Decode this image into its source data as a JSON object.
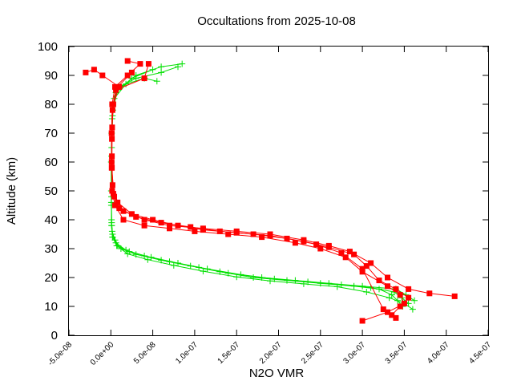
{
  "chart_data": {
    "type": "scatter",
    "title": "Occultations from 2025-10-08",
    "xlabel": "N2O VMR",
    "ylabel": "Altitude (km)",
    "xlim": [
      -5e-08,
      4.5e-07
    ],
    "ylim": [
      0,
      100
    ],
    "x_ticks": [
      -5e-08,
      0.0,
      5e-08,
      1e-07,
      1.5e-07,
      2e-07,
      2.5e-07,
      3e-07,
      3.5e-07,
      4e-07,
      4.5e-07
    ],
    "x_tick_labels": [
      "-5.0e-08",
      "0.0e+00",
      "5.0e-08",
      "1.0e-07",
      "1.5e-07",
      "2.0e-07",
      "2.5e-07",
      "3.0e-07",
      "3.5e-07",
      "4.0e-07",
      "4.5e-07"
    ],
    "y_ticks": [
      0,
      10,
      20,
      30,
      40,
      50,
      60,
      70,
      80,
      90,
      100
    ],
    "y_tick_labels": [
      "0",
      "10",
      "20",
      "30",
      "40",
      "50",
      "60",
      "70",
      "80",
      "90",
      "100"
    ],
    "grid": false,
    "series": [
      {
        "name": "green-profiles",
        "color": "#00e000",
        "marker": "plus",
        "profiles": [
          {
            "x": [
              3.48e-07,
              3.42e-07,
              3.35e-07,
              3.2e-07,
              2.9e-07,
              2.5e-07,
              2.1e-07,
              1.7e-07,
              1.3e-07,
              9.5e-08,
              6e-08,
              3e-08,
              1.2e-08,
              5e-09,
              1.5e-09,
              8e-10,
              5e-10,
              5e-10,
              1e-09,
              2e-09,
              1e-08,
              3e-08,
              6e-08,
              8e-08
            ],
            "y": [
              10,
              12,
              14,
              16,
              17,
              18,
              19,
              20,
              22,
              24,
              26,
              28,
              30,
              33,
              36,
              40,
              50,
              60,
              70,
              80,
              86,
              89,
              91,
              93
            ]
          },
          {
            "x": [
              3.55e-07,
              3.47e-07,
              3.38e-07,
              3.1e-07,
              2.75e-07,
              2.35e-07,
              1.95e-07,
              1.55e-07,
              1.15e-07,
              8e-08,
              4.8e-08,
              2.2e-08,
              8e-09,
              2e-09,
              1e-09,
              6e-10,
              6e-10,
              1.5e-09,
              4e-09,
              1.8e-08,
              4e-08,
              5.5e-08
            ],
            "y": [
              11,
              13,
              15,
              16.5,
              17.5,
              18.5,
              19.5,
              21,
              23,
              25,
              27,
              29,
              31,
              34,
              38,
              45,
              60,
              75,
              82,
              87,
              89,
              88
            ]
          },
          {
            "x": [
              3.62e-07,
              3.52e-07,
              3.4e-07,
              3e-07,
              2.6e-07,
              2.2e-07,
              1.8e-07,
              1.4e-07,
              1.05e-07,
              7e-08,
              4e-08,
              1.8e-08,
              6e-09,
              2e-09,
              1e-09,
              7e-10,
              1e-09,
              2.5e-09,
              8e-09,
              3e-08,
              6e-08,
              8.5e-08
            ],
            "y": [
              12,
              14,
              16,
              17,
              18,
              19,
              20,
              21.5,
              23.5,
              25.5,
              27.5,
              29.5,
              32,
              35,
              39,
              48,
              65,
              78,
              85,
              90,
              93,
              94
            ]
          },
          {
            "x": [
              3.6e-07,
              3.5e-07,
              3.32e-07,
              3.05e-07,
              2.7e-07,
              2.3e-07,
              1.9e-07,
              1.5e-07,
              1.1e-07,
              7.5e-08,
              4.4e-08,
              2e-08,
              7e-09,
              2e-09,
              1e-09,
              6e-10,
              8e-10,
              2e-09,
              6e-09,
              2.5e-08,
              5e-08
            ],
            "y": [
              9,
              11,
              13,
              15,
              16.8,
              17.8,
              18.8,
              20.2,
              22.2,
              24.2,
              26.2,
              28.2,
              31,
              34,
              38,
              46,
              62,
              76,
              84,
              89,
              92
            ]
          }
        ]
      },
      {
        "name": "red-profiles",
        "color": "#ff0000",
        "marker": "square",
        "profiles": [
          {
            "x": [
              3e-07,
              3.3e-07,
              3.5e-07,
              3.45e-07,
              3.3e-07,
              3e-07,
              2.8e-07,
              2.5e-07,
              2.2e-07,
              1.8e-07,
              1.4e-07,
              1e-07,
              7e-08,
              4e-08,
              1.5e-08,
              5e-09,
              1.5e-09,
              1e-09,
              1e-09,
              1.5e-09,
              5e-09,
              2e-08,
              3.5e-08,
              2e-08
            ],
            "y": [
              5,
              8,
              11,
              14,
              17,
              22,
              27,
              30,
              32,
              34,
              35,
              36,
              37,
              38,
              40,
              45,
              50,
              60,
              70,
              80,
              86,
              90,
              94,
              95
            ]
          },
          {
            "x": [
              3.35e-07,
              3.45e-07,
              3.55e-07,
              3.4e-07,
              3.2e-07,
              3.05e-07,
              2.9e-07,
              2.6e-07,
              2.3e-07,
              1.9e-07,
              1.5e-07,
              1.1e-07,
              8e-08,
              5e-08,
              2.5e-08,
              8e-09,
              2e-09,
              1.2e-09,
              1.5e-09,
              2.5e-09,
              8e-09,
              2.5e-08
            ],
            "y": [
              7,
              10,
              13,
              16,
              19,
              24,
              28,
              30.5,
              32.5,
              34.5,
              35.5,
              36.5,
              38,
              40,
              42,
              46,
              52,
              62,
              72,
              80,
              86,
              91
            ]
          },
          {
            "x": [
              4.1e-07,
              3.8e-07,
              3.55e-07,
              3.3e-07,
              3.1e-07,
              2.85e-07,
              2.6e-07,
              2.3e-07,
              1.9e-07,
              1.5e-07,
              1.1e-07,
              7e-08,
              4e-08,
              1.5e-08,
              4e-09,
              1e-09,
              1e-09,
              3e-09,
              1e-08,
              -1e-08,
              -2e-08,
              -3e-08
            ],
            "y": [
              13.5,
              14.5,
              16,
              20,
              25,
              29,
              31,
              33,
              35,
              36,
              37,
              38,
              40,
              43,
              48,
              58,
              70,
              80,
              86,
              90,
              92,
              91
            ]
          },
          {
            "x": [
              3.4e-07,
              3.25e-07,
              3e-07,
              2.75e-07,
              2.45e-07,
              2.1e-07,
              1.7e-07,
              1.3e-07,
              9.5e-08,
              6e-08,
              3e-08,
              1e-08,
              3e-09,
              1.2e-09,
              1.2e-09,
              2e-09,
              6e-09,
              4e-08,
              4.5e-08
            ],
            "y": [
              6,
              9,
              23,
              28.5,
              31.5,
              33.5,
              35,
              36,
              37.5,
              39,
              41,
              44,
              49,
              58,
              68,
              78,
              85,
              89,
              94
            ]
          }
        ]
      }
    ]
  }
}
